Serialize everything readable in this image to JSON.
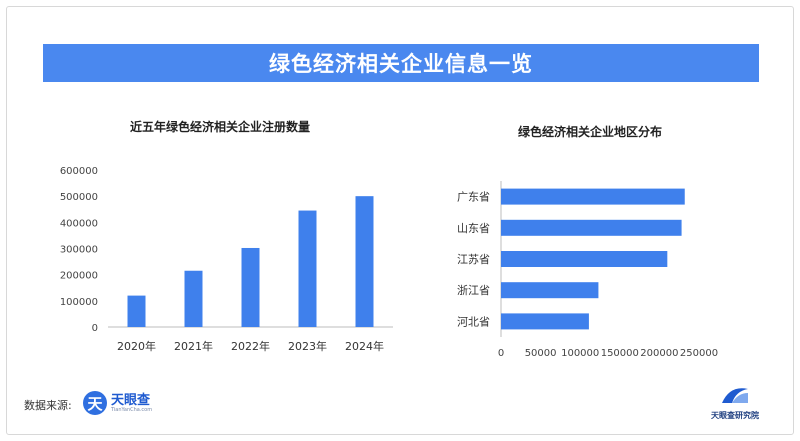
{
  "banner_title": "绿色经济相关企业信息一览",
  "source_label": "数据来源:",
  "logo_tianyancha": {
    "mark": "天",
    "name": "天眼查",
    "domain": "TianYanCha.com"
  },
  "logo_institute": {
    "name": "天眼查研究院"
  },
  "colors": {
    "accent": "#4a88ef",
    "bar": "#3f80ec"
  },
  "chart_data": [
    {
      "type": "bar",
      "title": "近五年绿色经济相关企业注册数量",
      "categories": [
        "2020年",
        "2021年",
        "2022年",
        "2023年",
        "2024年"
      ],
      "values": [
        120000,
        215000,
        302000,
        445000,
        500000
      ],
      "ylim": [
        0,
        600000
      ],
      "yticks": [
        "0",
        "100000",
        "200000",
        "300000",
        "400000",
        "500000",
        "600000"
      ],
      "grid": false
    },
    {
      "type": "bar",
      "orientation": "horizontal",
      "title": "绿色经济相关企业地区分布",
      "categories": [
        "广东省",
        "山东省",
        "江苏省",
        "浙江省",
        "河北省"
      ],
      "values": [
        232000,
        228000,
        210000,
        123000,
        111000
      ],
      "xlim": [
        0,
        250000
      ],
      "xticks": [
        "0",
        "50000",
        "100000",
        "150000",
        "200000",
        "250000"
      ],
      "grid": false
    }
  ]
}
